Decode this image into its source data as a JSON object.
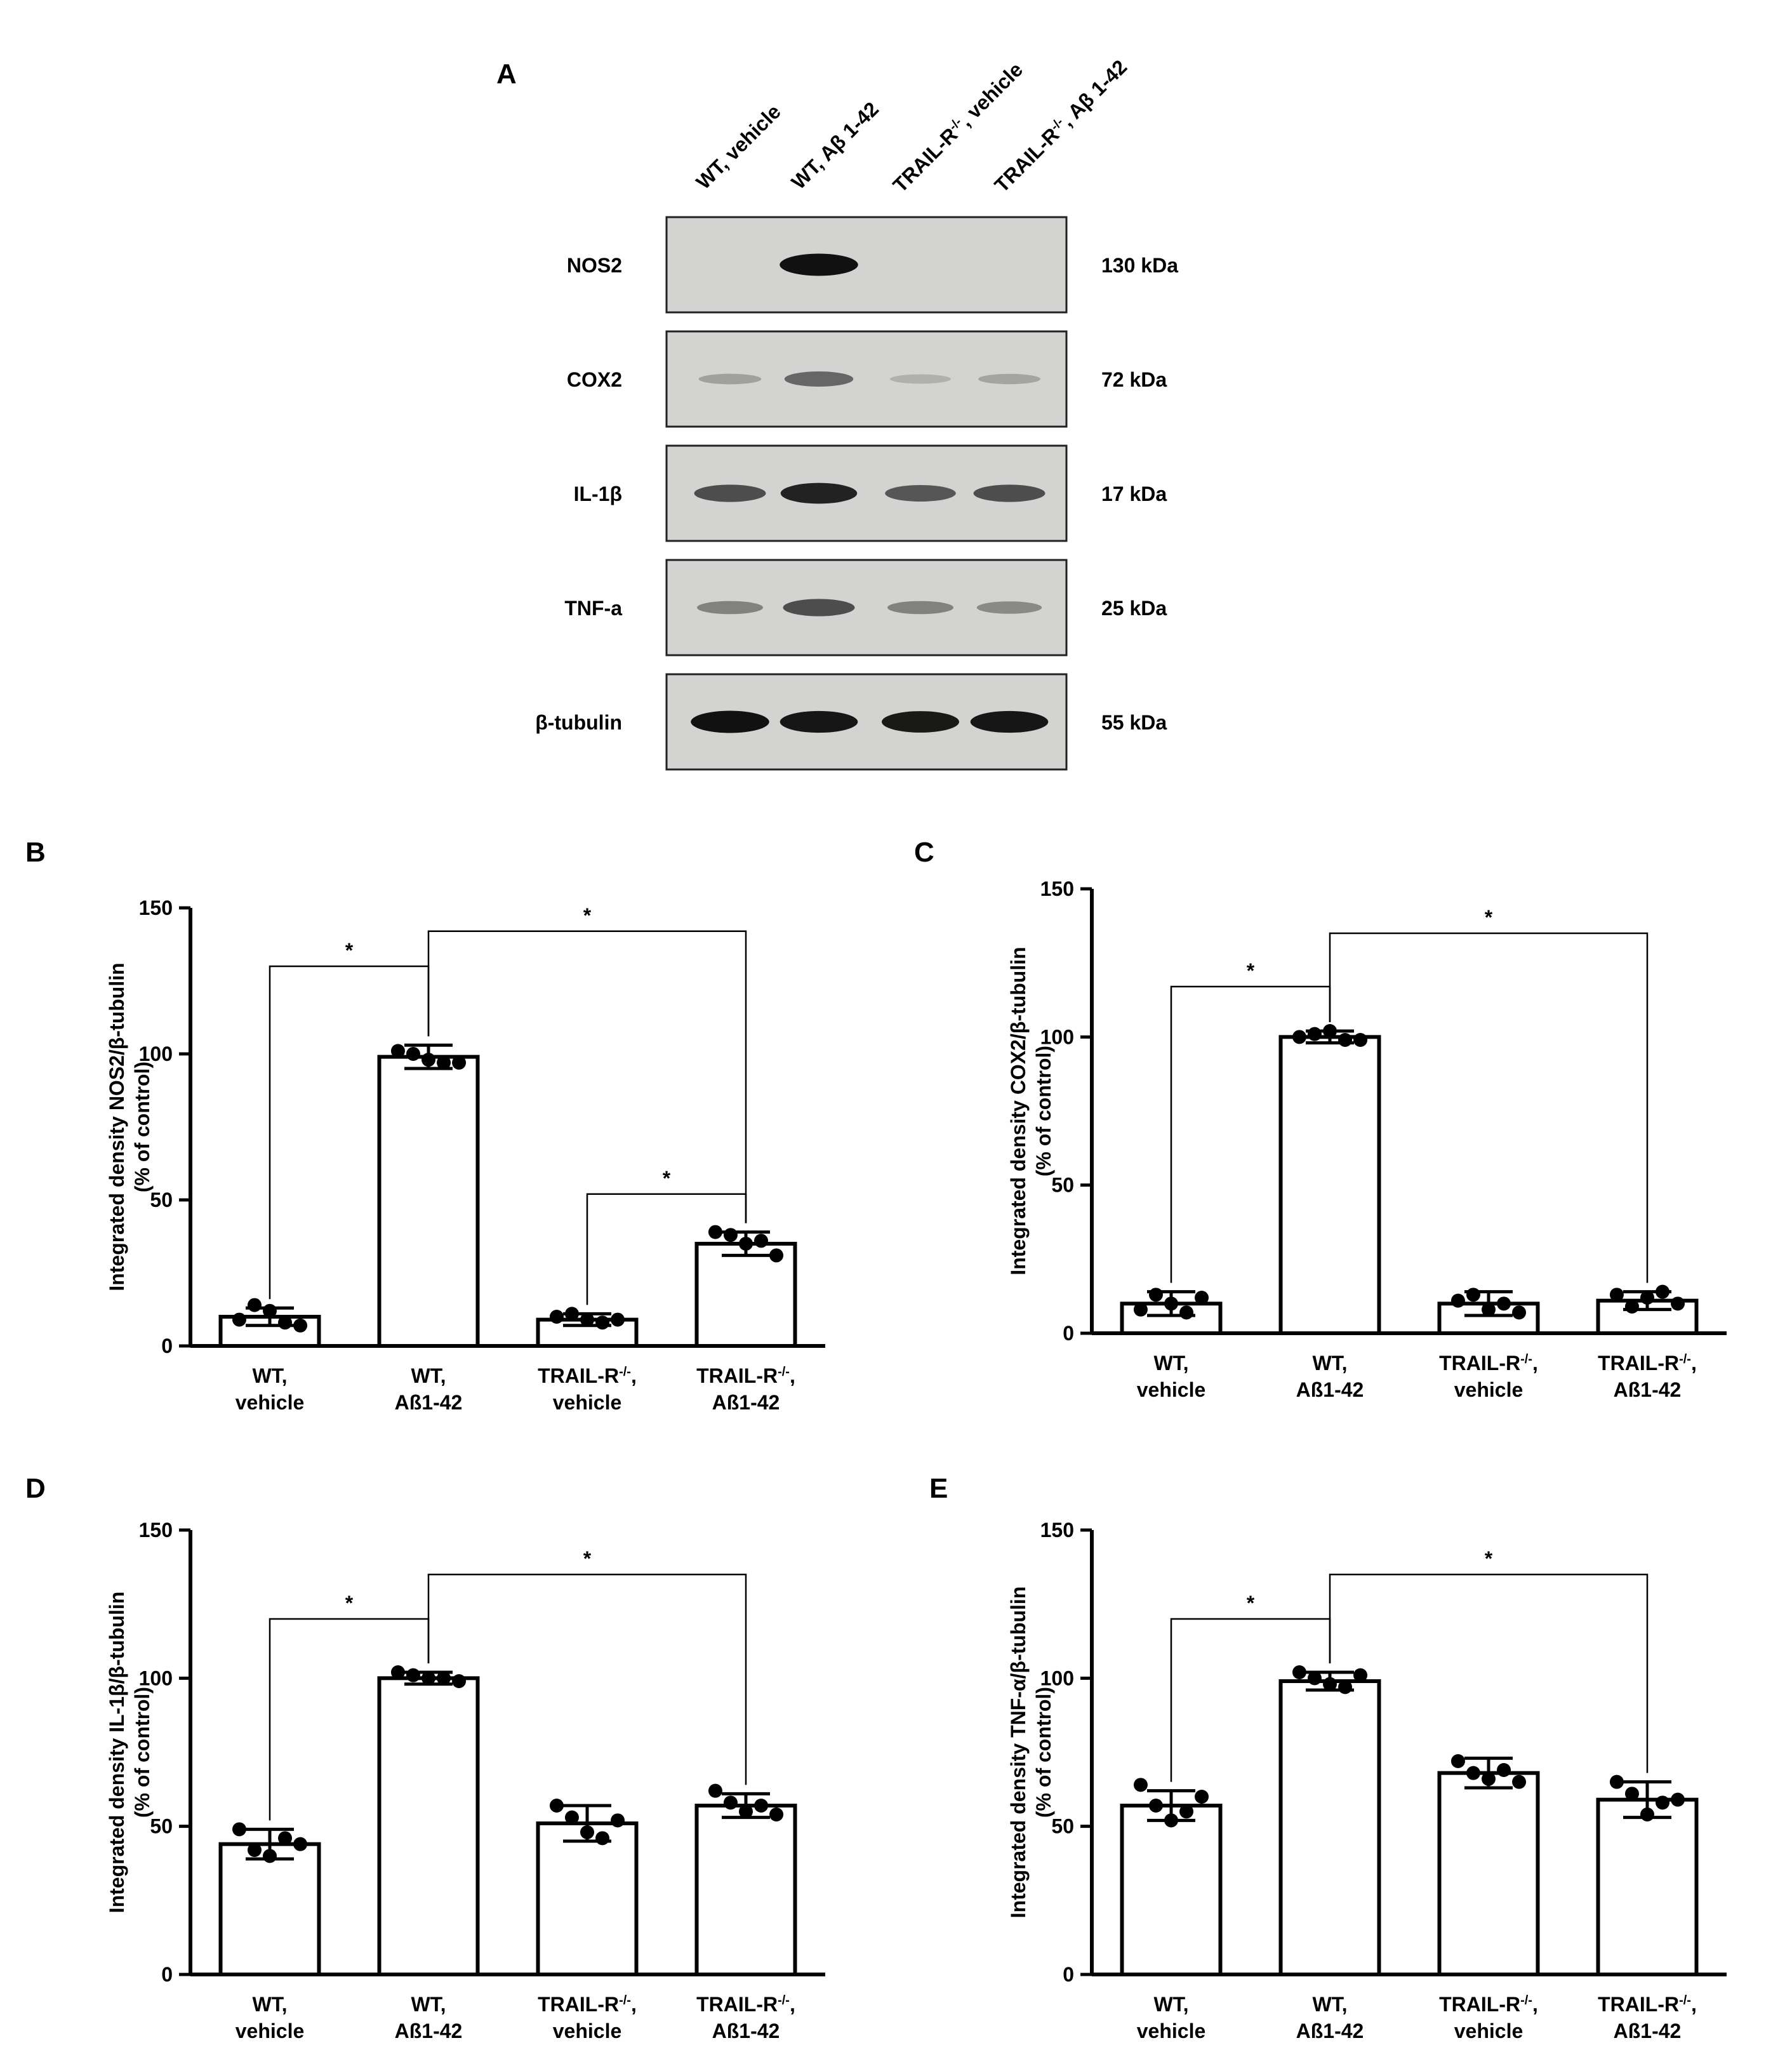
{
  "panels": {
    "A": "A",
    "B": "B",
    "C": "C",
    "D": "D",
    "E": "E"
  },
  "blot": {
    "lanes": [
      "WT, vehicle",
      "WT, Aβ 1-42",
      "TRAIL-R-/-, vehicle",
      "TRAIL-R-/-, Aβ 1-42"
    ],
    "rows": [
      {
        "name": "NOS2",
        "kda": "130 kDa",
        "intensity": [
          0.0,
          0.95,
          0.0,
          0.0
        ]
      },
      {
        "name": "COX2",
        "kda": "72 kDa",
        "intensity": [
          0.12,
          0.45,
          0.03,
          0.1
        ]
      },
      {
        "name": "IL-1β",
        "kda": "17 kDa",
        "intensity": [
          0.6,
          0.85,
          0.55,
          0.6
        ]
      },
      {
        "name": "TNF-a",
        "kda": "25 kDa",
        "intensity": [
          0.3,
          0.6,
          0.3,
          0.25
        ]
      },
      {
        "name": "β-tubulin",
        "kda": "55 kDa",
        "intensity": [
          0.95,
          0.92,
          0.9,
          0.92
        ]
      }
    ],
    "colors": {
      "membrane": "#d3d3d1",
      "membrane_dark": "#c8c8c6",
      "band": "#111111"
    }
  },
  "chart_data": [
    {
      "panel": "B",
      "type": "bar",
      "ylabel": "Integrated density NOS2/β-tubulin (% of control)",
      "ylim": [
        0,
        150
      ],
      "yticks": [
        0,
        50,
        100,
        150
      ],
      "categories": [
        "WT, vehicle",
        "WT, Aß1-42",
        "TRAIL-R-/-, vehicle",
        "TRAIL-R-/-, Aß1-42"
      ],
      "values": [
        10,
        99,
        9,
        35
      ],
      "errors": [
        3,
        4,
        2,
        4
      ],
      "points": [
        [
          9,
          14,
          12,
          8,
          7
        ],
        [
          101,
          100,
          98,
          97,
          97
        ],
        [
          10,
          11,
          9,
          8,
          9
        ],
        [
          39,
          38,
          35,
          36,
          31
        ]
      ],
      "significance": [
        {
          "from": 0,
          "to": 1,
          "y": 130,
          "label": "*"
        },
        {
          "from": 1,
          "to": 3,
          "y": 142,
          "label": "*"
        },
        {
          "from": 2,
          "to": 3,
          "y": 52,
          "label": "*"
        }
      ]
    },
    {
      "panel": "C",
      "type": "bar",
      "ylabel": "Integrated density COX2/β-tubulin (% of control)",
      "ylim": [
        0,
        150
      ],
      "yticks": [
        0,
        50,
        100,
        150
      ],
      "categories": [
        "WT, vehicle",
        "WT, Aß1-42",
        "TRAIL-R-/-, vehicle",
        "TRAIL-R-/-, Aß1-42"
      ],
      "values": [
        10,
        100,
        10,
        11
      ],
      "errors": [
        4,
        2,
        4,
        3
      ],
      "points": [
        [
          8,
          13,
          10,
          7,
          12
        ],
        [
          100,
          101,
          102,
          99,
          99
        ],
        [
          11,
          13,
          8,
          10,
          7
        ],
        [
          13,
          9,
          12,
          14,
          10
        ]
      ],
      "significance": [
        {
          "from": 0,
          "to": 1,
          "y": 117,
          "label": "*"
        },
        {
          "from": 1,
          "to": 3,
          "y": 135,
          "label": "*"
        }
      ]
    },
    {
      "panel": "D",
      "type": "bar",
      "ylabel": "Integrated density IL-1β/β-tubulin (% of control)",
      "ylim": [
        0,
        150
      ],
      "yticks": [
        0,
        50,
        100,
        150
      ],
      "categories": [
        "WT, vehicle",
        "WT, Aß1-42",
        "TRAIL-R-/-, vehicle",
        "TRAIL-R-/-, Aß1-42"
      ],
      "values": [
        44,
        100,
        51,
        57
      ],
      "errors": [
        5,
        2,
        6,
        4
      ],
      "points": [
        [
          49,
          42,
          40,
          46,
          44
        ],
        [
          102,
          101,
          100,
          100,
          99
        ],
        [
          57,
          53,
          48,
          46,
          52
        ],
        [
          62,
          58,
          55,
          57,
          54
        ]
      ],
      "significance": [
        {
          "from": 0,
          "to": 1,
          "y": 120,
          "label": "*"
        },
        {
          "from": 1,
          "to": 3,
          "y": 135,
          "label": "*"
        }
      ]
    },
    {
      "panel": "E",
      "type": "bar",
      "ylabel": "Integrated density TNF-α/β-tubulin (% of control)",
      "ylim": [
        0,
        150
      ],
      "yticks": [
        0,
        50,
        100,
        150
      ],
      "categories": [
        "WT, vehicle",
        "WT, Aß1-42",
        "TRAIL-R-/-, vehicle",
        "TRAIL-R-/-, Aß1-42"
      ],
      "values": [
        57,
        99,
        68,
        59
      ],
      "errors": [
        5,
        3,
        5,
        6
      ],
      "points": [
        [
          64,
          57,
          52,
          55,
          60
        ],
        [
          102,
          100,
          98,
          97,
          101
        ],
        [
          72,
          68,
          66,
          69,
          65
        ],
        [
          65,
          61,
          54,
          58,
          59
        ]
      ],
      "significance": [
        {
          "from": 0,
          "to": 1,
          "y": 120,
          "label": "*"
        },
        {
          "from": 1,
          "to": 3,
          "y": 135,
          "label": "*"
        }
      ]
    }
  ]
}
